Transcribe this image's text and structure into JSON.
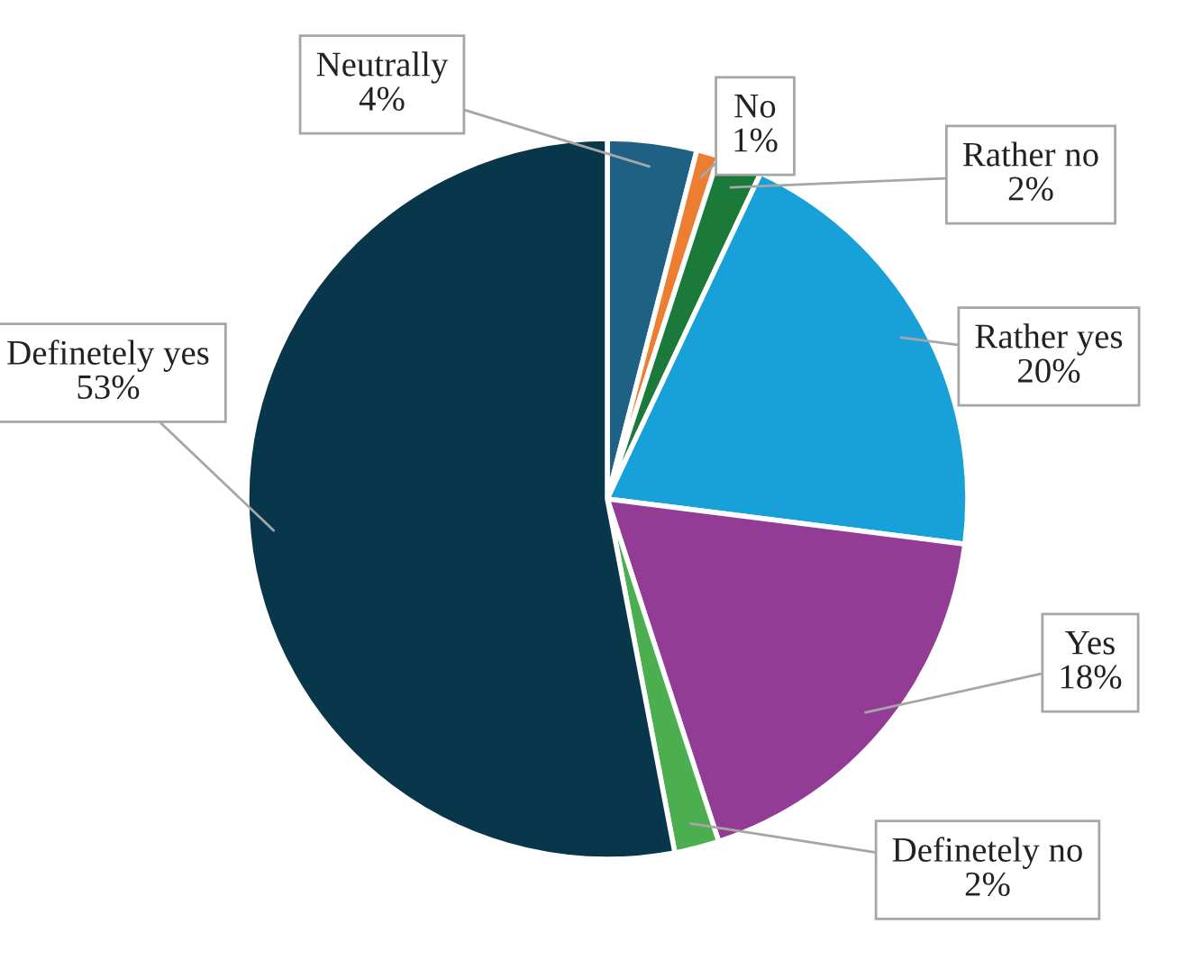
{
  "chart_data": {
    "type": "pie",
    "categories": [
      "Neutrally",
      "No",
      "Rather no",
      "Rather yes",
      "Yes",
      "Definetely no",
      "Definetely yes"
    ],
    "values": [
      4,
      1,
      2,
      20,
      18,
      2,
      53
    ],
    "value_labels": [
      "4%",
      "1%",
      "2%",
      "20%",
      "18%",
      "2%",
      "53%"
    ],
    "colors": [
      "#1f6184",
      "#ed7d31",
      "#1b7a3a",
      "#18a1d9",
      "#923c96",
      "#4caf4f",
      "#08364b"
    ],
    "legend": false
  }
}
